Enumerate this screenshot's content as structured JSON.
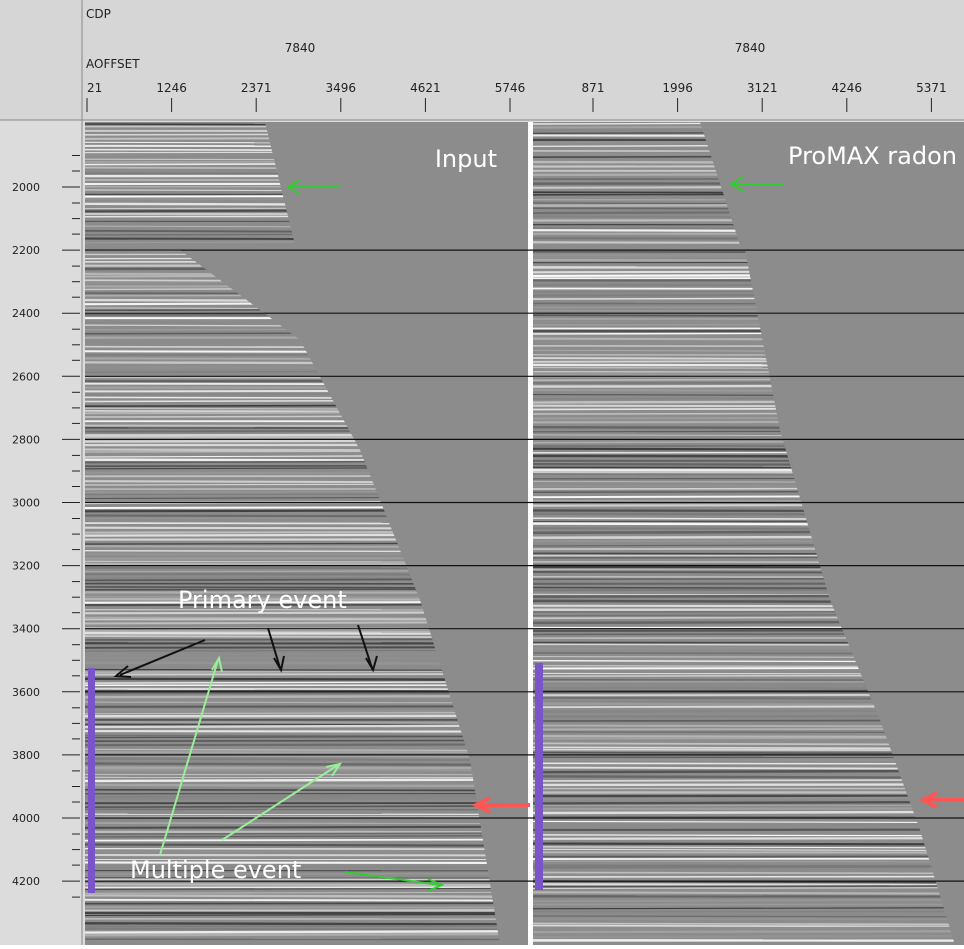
{
  "header": {
    "cdp_label": "CDP",
    "offset_label": "AOFFSET",
    "panels": [
      {
        "cdp": "7840",
        "offsets": [
          "21",
          "1246",
          "2371",
          "3496",
          "4621",
          "5746"
        ]
      },
      {
        "cdp": "7840",
        "offsets": [
          "871",
          "1996",
          "3121",
          "4246",
          "5371"
        ]
      }
    ]
  },
  "time_axis": {
    "ticks": [
      "2000",
      "2200",
      "2400",
      "2600",
      "2800",
      "3000",
      "3200",
      "3400",
      "3600",
      "3800",
      "4000",
      "4200"
    ]
  },
  "annotations": {
    "input": "Input",
    "promax": "ProMAX radon",
    "primary": "Primary event",
    "multiple": "Multiple event"
  }
}
